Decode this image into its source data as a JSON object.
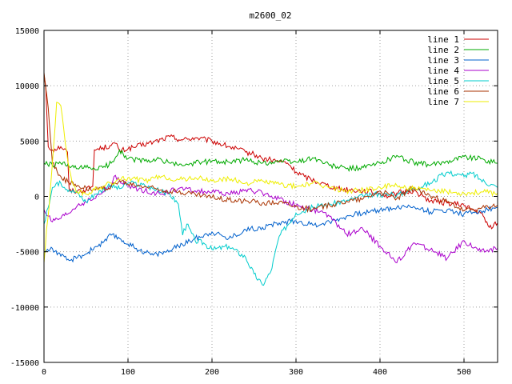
{
  "chart_data": {
    "type": "line",
    "title": "m2600_02",
    "xlabel": "",
    "ylabel": "",
    "xlim": [
      0,
      540
    ],
    "ylim": [
      -15000,
      15000
    ],
    "x_ticks": [
      0,
      100,
      200,
      300,
      400,
      500
    ],
    "y_ticks": [
      -15000,
      -10000,
      -5000,
      0,
      5000,
      10000,
      15000
    ],
    "grid": true,
    "legend_position": "top-right",
    "series": [
      {
        "name": "line 1",
        "color": "#cc0000",
        "x": [
          0,
          2,
          5,
          10,
          20,
          28,
          30,
          40,
          50,
          58,
          60,
          70,
          80,
          85,
          90,
          100,
          110,
          130,
          150,
          165,
          180,
          200,
          220,
          240,
          250,
          260,
          270,
          290,
          300,
          310,
          330,
          350,
          380,
          400,
          410,
          420,
          440,
          460,
          480,
          500,
          510,
          520,
          530,
          540
        ],
        "y": [
          11000,
          10000,
          4500,
          4200,
          4500,
          4000,
          500,
          500,
          600,
          900,
          4200,
          4400,
          4600,
          4800,
          4100,
          4300,
          4500,
          4900,
          5400,
          5100,
          5300,
          5000,
          4500,
          4000,
          3800,
          3400,
          3300,
          3000,
          2200,
          1800,
          1200,
          700,
          500,
          300,
          0,
          300,
          500,
          -400,
          -600,
          -800,
          -1200,
          -1500,
          -2800,
          -2400
        ]
      },
      {
        "name": "line 2",
        "color": "#00aa00",
        "x": [
          0,
          10,
          20,
          30,
          40,
          50,
          60,
          70,
          80,
          90,
          100,
          120,
          140,
          160,
          180,
          200,
          220,
          240,
          260,
          280,
          300,
          320,
          340,
          360,
          380,
          400,
          420,
          430,
          440,
          460,
          480,
          500,
          520,
          540
        ],
        "y": [
          3000,
          2800,
          3000,
          2700,
          2500,
          2600,
          2500,
          2600,
          3000,
          4200,
          3400,
          3200,
          3300,
          2800,
          3000,
          3200,
          3100,
          3300,
          3000,
          3200,
          3100,
          3500,
          2800,
          2500,
          2600,
          3000,
          3700,
          3300,
          3100,
          2800,
          3200,
          3600,
          3400,
          3000
        ]
      },
      {
        "name": "line 3",
        "color": "#0060cc",
        "x": [
          0,
          10,
          20,
          30,
          40,
          50,
          60,
          70,
          80,
          90,
          100,
          110,
          120,
          130,
          140,
          150,
          160,
          180,
          200,
          220,
          240,
          260,
          280,
          300,
          320,
          340,
          360,
          380,
          400,
          420,
          440,
          460,
          480,
          500,
          520,
          540
        ],
        "y": [
          -5000,
          -4700,
          -5400,
          -5800,
          -5500,
          -5200,
          -4600,
          -4200,
          -3500,
          -3800,
          -4300,
          -4700,
          -5000,
          -5300,
          -5100,
          -4900,
          -4500,
          -3800,
          -3200,
          -3800,
          -3000,
          -2800,
          -2400,
          -2200,
          -2600,
          -2300,
          -1800,
          -1500,
          -1200,
          -1000,
          -900,
          -1400,
          -1200,
          -1600,
          -1300,
          -1000
        ]
      },
      {
        "name": "line 4",
        "color": "#aa00cc",
        "x": [
          0,
          5,
          10,
          20,
          30,
          40,
          50,
          60,
          70,
          80,
          85,
          90,
          100,
          120,
          140,
          160,
          180,
          200,
          220,
          240,
          260,
          280,
          300,
          320,
          340,
          360,
          380,
          400,
          420,
          440,
          460,
          480,
          500,
          520,
          540
        ],
        "y": [
          -1200,
          -1800,
          -2300,
          -2000,
          -1500,
          -800,
          -500,
          -200,
          400,
          1000,
          1900,
          1400,
          900,
          500,
          200,
          700,
          500,
          400,
          200,
          600,
          300,
          -200,
          -800,
          -1200,
          -1800,
          -3400,
          -3000,
          -4500,
          -6000,
          -4200,
          -4800,
          -5600,
          -4000,
          -5000,
          -4700
        ]
      },
      {
        "name": "line 5",
        "color": "#00cccc",
        "x": [
          0,
          5,
          10,
          20,
          30,
          40,
          50,
          60,
          70,
          80,
          90,
          100,
          120,
          140,
          150,
          160,
          165,
          170,
          180,
          190,
          200,
          220,
          240,
          250,
          260,
          270,
          280,
          300,
          320,
          340,
          360,
          380,
          400,
          420,
          440,
          460,
          480,
          500,
          510,
          520,
          540
        ],
        "y": [
          -2500,
          -1000,
          800,
          1200,
          600,
          300,
          -500,
          200,
          600,
          1000,
          700,
          1200,
          1000,
          400,
          200,
          -700,
          -3500,
          -2500,
          -4000,
          -4200,
          -4800,
          -4500,
          -5500,
          -7000,
          -8000,
          -6800,
          -3600,
          -1500,
          -1000,
          -700,
          -400,
          0,
          200,
          100,
          700,
          1200,
          2200,
          1800,
          2100,
          1500,
          800
        ]
      },
      {
        "name": "line 6",
        "color": "#aa3300",
        "x": [
          0,
          5,
          10,
          20,
          30,
          40,
          50,
          60,
          70,
          80,
          90,
          100,
          120,
          140,
          160,
          180,
          200,
          220,
          240,
          260,
          280,
          300,
          320,
          340,
          360,
          380,
          400,
          420,
          440,
          460,
          480,
          500,
          520,
          540
        ],
        "y": [
          11200,
          8000,
          3000,
          1800,
          1200,
          1000,
          800,
          600,
          700,
          900,
          1400,
          1100,
          900,
          600,
          400,
          200,
          -100,
          -300,
          -400,
          -600,
          -500,
          -900,
          -1200,
          -800,
          -400,
          -200,
          500,
          -200,
          800,
          0,
          -500,
          -1300,
          -1100,
          -800
        ]
      },
      {
        "name": "line 7",
        "color": "#eeee00",
        "x": [
          0,
          3,
          6,
          10,
          15,
          20,
          25,
          30,
          35,
          40,
          50,
          60,
          70,
          80,
          90,
          100,
          120,
          140,
          160,
          180,
          200,
          220,
          240,
          260,
          280,
          300,
          320,
          340,
          360,
          380,
          400,
          420,
          440,
          460,
          480,
          500,
          520,
          540
        ],
        "y": [
          -6000,
          -3000,
          -1000,
          3000,
          8500,
          8200,
          5000,
          2500,
          1000,
          400,
          200,
          600,
          900,
          1200,
          1500,
          1700,
          1400,
          1800,
          1500,
          1700,
          1400,
          1600,
          1200,
          1400,
          1100,
          900,
          1200,
          800,
          500,
          600,
          800,
          1000,
          700,
          500,
          400,
          300,
          400,
          300
        ]
      }
    ]
  }
}
